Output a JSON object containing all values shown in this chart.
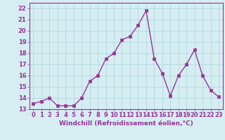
{
  "x": [
    0,
    1,
    2,
    3,
    4,
    5,
    6,
    7,
    8,
    9,
    10,
    11,
    12,
    13,
    14,
    15,
    16,
    17,
    18,
    19,
    20,
    21,
    22,
    23
  ],
  "y": [
    13.5,
    13.7,
    14.0,
    13.3,
    13.3,
    13.3,
    14.0,
    15.5,
    16.0,
    17.5,
    18.0,
    19.2,
    19.5,
    20.5,
    21.8,
    17.5,
    16.2,
    14.2,
    16.0,
    17.0,
    18.3,
    16.0,
    14.7,
    14.1
  ],
  "line_color": "#993399",
  "marker": "s",
  "markersize": 2.5,
  "linewidth": 1.0,
  "xlabel": "Windchill (Refroidissement éolien,°C)",
  "xlabel_fontsize": 6.5,
  "ylim": [
    13,
    22.5
  ],
  "xlim": [
    -0.5,
    23.5
  ],
  "yticks": [
    13,
    14,
    15,
    16,
    17,
    18,
    19,
    20,
    21,
    22
  ],
  "xticks": [
    0,
    1,
    2,
    3,
    4,
    5,
    6,
    7,
    8,
    9,
    10,
    11,
    12,
    13,
    14,
    15,
    16,
    17,
    18,
    19,
    20,
    21,
    22,
    23
  ],
  "bg_color": "#d6eef2",
  "grid_color": "#b0d8e0",
  "tick_color": "#993399",
  "axis_label_color": "#993399",
  "tick_fontsize": 6.0,
  "spine_color": "#993399"
}
